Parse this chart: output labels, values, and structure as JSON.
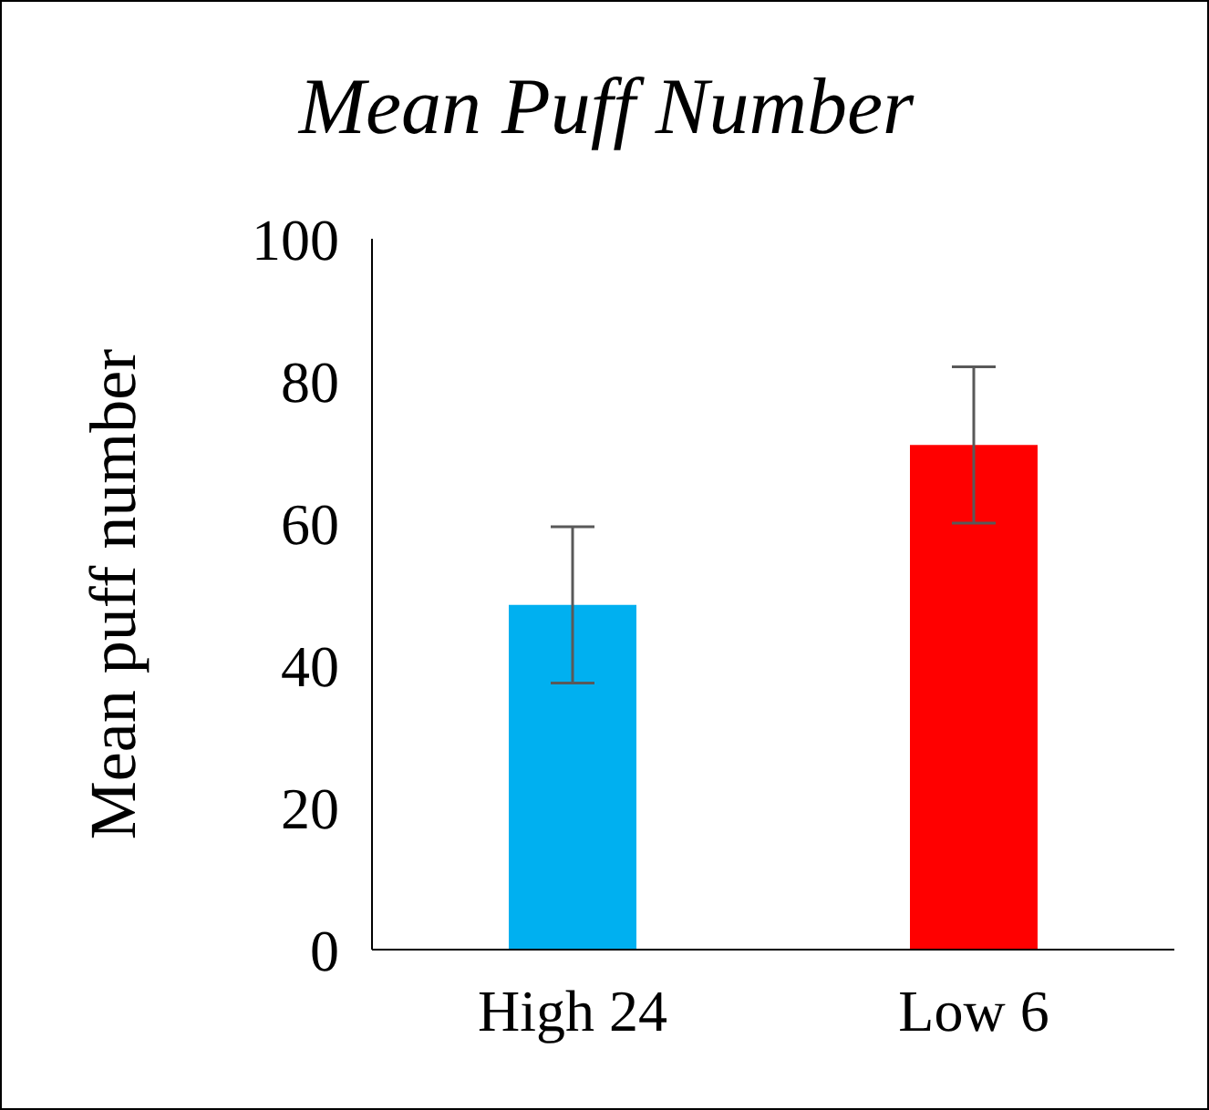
{
  "chart_data": {
    "type": "bar",
    "title": "Mean Puff Number",
    "ylabel": "Mean puff number",
    "categories": [
      "High 24",
      "Low 6"
    ],
    "values": [
      48.5,
      71
    ],
    "colors": [
      "#00b0f0",
      "#ff0000"
    ],
    "errors": [
      11,
      11
    ],
    "ylim": [
      0,
      100
    ],
    "yticks": [
      0,
      20,
      40,
      60,
      80,
      100
    ],
    "grid": false,
    "legend": false
  }
}
